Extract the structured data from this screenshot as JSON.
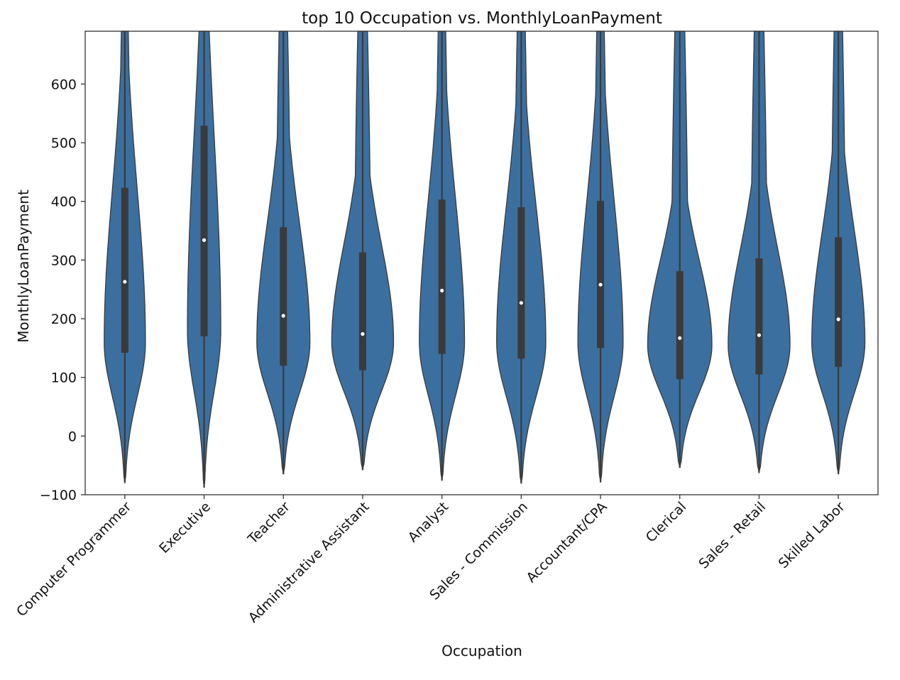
{
  "chart_data": {
    "type": "violin",
    "title": "top 10 Occupation vs. MonthlyLoanPayment",
    "xlabel": "Occupation",
    "ylabel": "MonthlyLoanPayment",
    "ylim": [
      -100,
      690
    ],
    "yticks": [
      -100,
      0,
      100,
      200,
      300,
      400,
      500,
      600
    ],
    "color": "#3b6fa0",
    "categories": [
      "Computer Programmer",
      "Executive",
      "Teacher",
      "Administrative Assistant",
      "Analyst",
      "Sales - Commission",
      "Accountant/CPA",
      "Clerical",
      "Sales - Retail",
      "Skilled Labor"
    ],
    "violins": [
      {
        "min": -80,
        "q1": 142,
        "median": 263,
        "q3": 423,
        "max": 690,
        "mode": 160,
        "max_half_width": 0.52
      },
      {
        "min": -88,
        "q1": 170,
        "median": 334,
        "q3": 529,
        "max": 690,
        "mode": 180,
        "max_half_width": 0.42
      },
      {
        "min": -65,
        "q1": 120,
        "median": 205,
        "q3": 356,
        "max": 690,
        "mode": 160,
        "max_half_width": 0.67
      },
      {
        "min": -58,
        "q1": 112,
        "median": 174,
        "q3": 313,
        "max": 690,
        "mode": 160,
        "max_half_width": 0.78
      },
      {
        "min": -76,
        "q1": 140,
        "median": 248,
        "q3": 403,
        "max": 690,
        "mode": 160,
        "max_half_width": 0.57
      },
      {
        "min": -81,
        "q1": 132,
        "median": 227,
        "q3": 390,
        "max": 690,
        "mode": 160,
        "max_half_width": 0.62
      },
      {
        "min": -79,
        "q1": 150,
        "median": 258,
        "q3": 401,
        "max": 690,
        "mode": 160,
        "max_half_width": 0.57
      },
      {
        "min": -54,
        "q1": 97,
        "median": 167,
        "q3": 281,
        "max": 690,
        "mode": 155,
        "max_half_width": 0.81
      },
      {
        "min": -63,
        "q1": 105,
        "median": 172,
        "q3": 303,
        "max": 690,
        "mode": 155,
        "max_half_width": 0.78
      },
      {
        "min": -65,
        "q1": 118,
        "median": 199,
        "q3": 339,
        "max": 690,
        "mode": 160,
        "max_half_width": 0.67
      }
    ]
  }
}
